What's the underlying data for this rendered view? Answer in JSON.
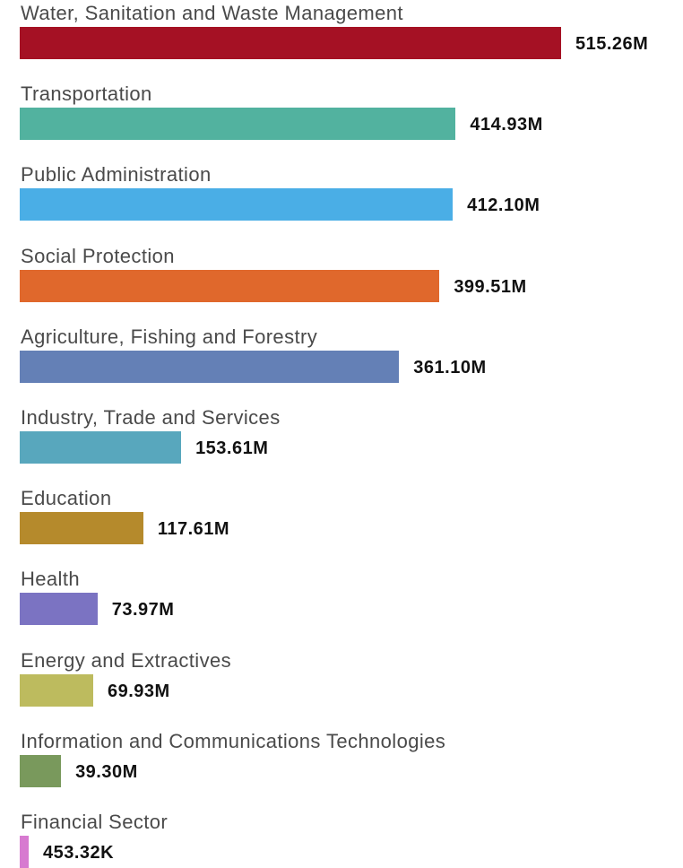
{
  "chart_data": {
    "type": "bar",
    "orientation": "horizontal",
    "categories": [
      "Water, Sanitation and Waste Management",
      "Transportation",
      "Public Administration",
      "Social Protection",
      "Agriculture, Fishing and Forestry",
      "Industry, Trade and Services",
      "Education",
      "Health",
      "Energy and Extractives",
      "Information and Communications Technologies",
      "Financial Sector"
    ],
    "values": [
      515260000,
      414930000,
      412100000,
      399510000,
      361100000,
      153610000,
      117610000,
      73970000,
      69930000,
      39300000,
      453320
    ],
    "value_labels": [
      "515.26M",
      "414.93M",
      "412.10M",
      "399.51M",
      "361.10M",
      "153.61M",
      "117.61M",
      "73.97M",
      "69.93M",
      "39.30M",
      "453.32K"
    ],
    "colors": [
      "#a51124",
      "#52b29f",
      "#4aaee6",
      "#e0682c",
      "#6480b6",
      "#58a7bd",
      "#b58a2c",
      "#7b73c2",
      "#bdbb5e",
      "#79995c",
      "#d77ad0"
    ],
    "title": "",
    "xlabel": "",
    "ylabel": "",
    "xlim": [
      0,
      515260000
    ],
    "grid": false,
    "legend": "none"
  }
}
